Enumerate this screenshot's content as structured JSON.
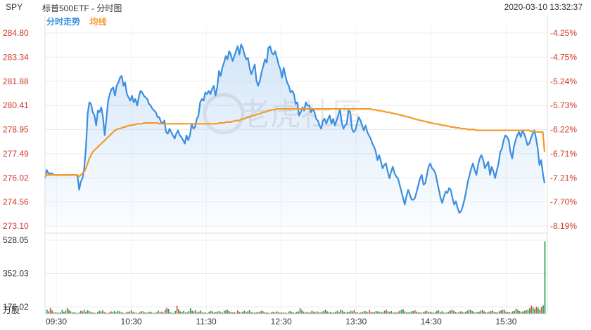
{
  "header": {
    "ticker": "SPY",
    "title": "标普500ETF - 分时图",
    "datetime": "2020-03-10 13:32:37",
    "legend": [
      {
        "label": "分时走势",
        "color": "#3b8ee0"
      },
      {
        "label": "均线",
        "color": "#f39a2b"
      }
    ]
  },
  "watermark": "老虎社區",
  "chart_data": [
    {
      "type": "line",
      "title": "",
      "x_ticks": [
        "09:30",
        "10:30",
        "11:30",
        "12:30",
        "13:30",
        "14:30",
        "15:30"
      ],
      "y_ticks": [
        "284.80",
        "283.34",
        "281.88",
        "280.41",
        "278.95",
        "277.49",
        "276.02",
        "274.56",
        "273.10"
      ],
      "y_ticks_right": [
        "-4.25%",
        "-4.75%",
        "-5.24%",
        "-5.73%",
        "-6.22%",
        "-6.71%",
        "-7.21%",
        "-7.70%",
        "-8.19%"
      ],
      "ylim": [
        273.1,
        284.8
      ],
      "grid": true,
      "series": [
        {
          "name": "分时走势",
          "color": "#3b8ee0",
          "fill": true,
          "values": [
            276.0,
            276.5,
            276.3,
            276.3,
            276.3,
            276.2,
            276.2,
            276.2,
            276.2,
            276.2,
            276.2,
            276.2,
            276.2,
            276.2,
            276.2,
            276.2,
            276.2,
            276.2,
            276.2,
            276.2,
            275.3,
            275.8,
            276.0,
            276.6,
            277.9,
            279.9,
            280.6,
            280.5,
            280.0,
            279.8,
            279.2,
            280.1,
            280.0,
            280.3,
            279.7,
            278.6,
            279.6,
            280.7,
            281.1,
            281.4,
            281.5,
            281.0,
            281.6,
            281.8,
            282.1,
            282.2,
            281.6,
            281.8,
            281.1,
            280.9,
            280.7,
            281.0,
            280.6,
            280.8,
            280.4,
            280.9,
            281.3,
            281.2,
            281.0,
            280.9,
            280.8,
            280.5,
            280.4,
            280.2,
            280.1,
            280.0,
            279.7,
            279.7,
            279.4,
            279.3,
            279.5,
            278.8,
            278.7,
            279.0,
            278.8,
            278.6,
            278.4,
            278.7,
            278.9,
            278.6,
            278.5,
            278.3,
            278.1,
            278.6,
            278.3,
            278.6,
            279.3,
            279.0,
            279.1,
            279.6,
            279.8,
            280.6,
            280.8,
            280.7,
            281.2,
            281.1,
            281.3,
            281.1,
            281.4,
            281.6,
            281.0,
            281.5,
            282.5,
            282.2,
            282.7,
            283.0,
            283.4,
            283.2,
            283.7,
            283.5,
            283.1,
            283.4,
            283.7,
            284.0,
            283.5,
            284.1,
            283.9,
            283.5,
            283.2,
            283.3,
            282.7,
            282.3,
            282.6,
            282.9,
            281.9,
            281.6,
            281.9,
            282.4,
            282.8,
            283.2,
            283.0,
            283.9,
            284.0,
            283.6,
            283.5,
            283.7,
            283.3,
            282.9,
            282.6,
            282.1,
            282.7,
            282.2,
            281.8,
            281.6,
            281.2,
            281.3,
            281.1,
            280.5,
            280.6,
            279.8,
            280.0,
            280.3,
            280.1,
            280.6,
            280.4,
            280.4,
            280.0,
            280.2,
            280.0,
            279.6,
            279.5,
            279.2,
            279.0,
            279.5,
            279.6,
            279.3,
            279.6,
            279.8,
            279.3,
            279.6,
            279.2,
            279.5,
            279.8,
            280.2,
            279.4,
            279.0,
            279.2,
            279.3,
            280.1,
            280.0,
            279.0,
            278.8,
            278.9,
            279.3,
            279.7,
            279.5,
            279.2,
            278.9,
            279.2,
            278.8,
            278.6,
            278.4,
            278.1,
            277.9,
            277.6,
            277.1,
            277.4,
            277.0,
            276.6,
            276.8,
            276.9,
            276.4,
            276.0,
            276.4,
            276.7,
            276.3,
            276.1,
            276.0,
            275.6,
            275.2,
            274.8,
            274.4,
            274.9,
            275.3,
            275.0,
            274.7,
            274.7,
            274.8,
            275.2,
            275.6,
            276.0,
            276.2,
            275.6,
            275.7,
            276.2,
            276.7,
            276.9,
            276.6,
            276.5,
            276.3,
            275.8,
            275.3,
            274.8,
            274.5,
            274.9,
            275.2,
            275.1,
            275.4,
            275.3,
            274.8,
            274.4,
            274.6,
            274.2,
            273.9,
            274.0,
            274.3,
            274.7,
            275.2,
            275.8,
            276.2,
            276.6,
            276.9,
            276.5,
            276.2,
            276.8,
            277.2,
            277.4,
            277.1,
            276.6,
            276.8,
            277.0,
            276.2,
            276.7,
            276.4,
            276.0,
            276.5,
            276.9,
            277.6,
            277.8,
            278.3,
            278.6,
            278.5,
            278.3,
            277.6,
            277.2,
            277.9,
            278.3,
            278.6,
            278.8,
            278.5,
            278.9,
            278.7,
            278.4,
            278.0,
            278.1,
            278.4,
            278.7,
            278.9,
            278.4,
            277.8,
            276.8,
            277.1,
            276.3,
            275.7
          ]
        },
        {
          "name": "均线",
          "color": "#f39a2b",
          "fill": false,
          "values": [
            276.2,
            276.2,
            276.2,
            276.2,
            276.2,
            276.2,
            276.2,
            276.2,
            276.2,
            276.2,
            276.2,
            276.2,
            276.2,
            276.2,
            276.2,
            276.2,
            276.2,
            276.2,
            276.2,
            276.2,
            276.1,
            276.2,
            276.3,
            276.4,
            276.6,
            276.9,
            277.2,
            277.4,
            277.6,
            277.7,
            277.8,
            277.9,
            278.0,
            278.1,
            278.2,
            278.3,
            278.4,
            278.5,
            278.6,
            278.7,
            278.8,
            278.9,
            278.95,
            279.0,
            279.0,
            279.05,
            279.1,
            279.1,
            279.15,
            279.2,
            279.2,
            279.2,
            279.25,
            279.25,
            279.3,
            279.3,
            279.3,
            279.3,
            279.35,
            279.35,
            279.35,
            279.35,
            279.35,
            279.35,
            279.35,
            279.35,
            279.35,
            279.3,
            279.3,
            279.3,
            279.3,
            279.3,
            279.3,
            279.3,
            279.3,
            279.3,
            279.3,
            279.3,
            279.3,
            279.3,
            279.3,
            279.3,
            279.3,
            279.3,
            279.3,
            279.3,
            279.3,
            279.3,
            279.3,
            279.3,
            279.3,
            279.3,
            279.3,
            279.3,
            279.3,
            279.3,
            279.3,
            279.3,
            279.3,
            279.3,
            279.3,
            279.3,
            279.35,
            279.35,
            279.35,
            279.35,
            279.4,
            279.4,
            279.4,
            279.4,
            279.45,
            279.45,
            279.5,
            279.5,
            279.5,
            279.55,
            279.6,
            279.6,
            279.65,
            279.7,
            279.7,
            279.75,
            279.8,
            279.8,
            279.85,
            279.9,
            279.9,
            279.95,
            280.0,
            280.0,
            280.05,
            280.1,
            280.1,
            280.15,
            280.15,
            280.15,
            280.2,
            280.2,
            280.2,
            280.2,
            280.2,
            280.2,
            280.2,
            280.2,
            280.2,
            280.2,
            280.2,
            280.2,
            280.2,
            280.2,
            280.2,
            280.2,
            280.2,
            280.2,
            280.2,
            280.2,
            280.2,
            280.2,
            280.2,
            280.2,
            280.2,
            280.2,
            280.2,
            280.2,
            280.2,
            280.2,
            280.2,
            280.2,
            280.2,
            280.2,
            280.2,
            280.2,
            280.2,
            280.2,
            280.2,
            280.2,
            280.2,
            280.2,
            280.2,
            280.2,
            280.2,
            280.2,
            280.2,
            280.2,
            280.2,
            280.2,
            280.2,
            280.2,
            280.2,
            280.2,
            280.2,
            280.2,
            280.15,
            280.15,
            280.15,
            280.1,
            280.1,
            280.1,
            280.05,
            280.05,
            280.0,
            280.0,
            280.0,
            279.95,
            279.95,
            279.9,
            279.9,
            279.85,
            279.85,
            279.8,
            279.8,
            279.75,
            279.75,
            279.7,
            279.7,
            279.65,
            279.6,
            279.6,
            279.55,
            279.55,
            279.5,
            279.5,
            279.45,
            279.45,
            279.4,
            279.4,
            279.35,
            279.35,
            279.3,
            279.3,
            279.3,
            279.25,
            279.25,
            279.2,
            279.2,
            279.2,
            279.15,
            279.15,
            279.1,
            279.1,
            279.1,
            279.05,
            279.05,
            279.05,
            279.0,
            279.0,
            279.0,
            279.0,
            278.95,
            278.95,
            278.95,
            278.95,
            278.95,
            278.9,
            278.9,
            278.9,
            278.9,
            278.9,
            278.9,
            278.9,
            278.9,
            278.9,
            278.9,
            278.9,
            278.9,
            278.9,
            278.9,
            278.9,
            278.9,
            278.9,
            278.9,
            278.9,
            278.9,
            278.9,
            278.9,
            278.9,
            278.9,
            278.9,
            278.9,
            278.9,
            278.9,
            278.9,
            278.9,
            278.9,
            278.9,
            278.85,
            278.85,
            278.85,
            278.8,
            278.8,
            278.8,
            278.8,
            278.8,
            277.6
          ]
        }
      ]
    },
    {
      "type": "bar",
      "title": "",
      "y_unit": "万股",
      "y_ticks": [
        "528.05",
        "352.03",
        "176.02"
      ],
      "ylim": [
        0,
        528.05
      ],
      "colors": {
        "up": "#e04c3c",
        "down": "#2a9d55"
      },
      "values": [
        30,
        18,
        42,
        25,
        12,
        10,
        8,
        8,
        12,
        30,
        15,
        22,
        40,
        28,
        18,
        10,
        12,
        8,
        6,
        10,
        22,
        18,
        30,
        14,
        26,
        20,
        12,
        10,
        8,
        6,
        14,
        22,
        18,
        26,
        12,
        8,
        6,
        10,
        18,
        14,
        20,
        10,
        22,
        18,
        12,
        8,
        6,
        10,
        14,
        18,
        26,
        12,
        10,
        8,
        6,
        12,
        20,
        18,
        10,
        8,
        14,
        16,
        12,
        6,
        8,
        10,
        22,
        12,
        16,
        8,
        30,
        42,
        36,
        12,
        8,
        6,
        20,
        58,
        34,
        18,
        14,
        22,
        10,
        12,
        20,
        40,
        22,
        18,
        26,
        10,
        16,
        24,
        12,
        8,
        10,
        6,
        14,
        22,
        18,
        10,
        12,
        16,
        20,
        12,
        8,
        22,
        26,
        30,
        18,
        14,
        10,
        12,
        8,
        24,
        14,
        10,
        16,
        22,
        12,
        18,
        26,
        10,
        12,
        8,
        10,
        14,
        16,
        22,
        18,
        12,
        10,
        8,
        6,
        12,
        16,
        10,
        18,
        14,
        8,
        12,
        10,
        8,
        6,
        12,
        20,
        14,
        10,
        8,
        14,
        18,
        40,
        28,
        16,
        10,
        14,
        8,
        12,
        22,
        16,
        10,
        18,
        12,
        8,
        16,
        22,
        30,
        18,
        12,
        14,
        8,
        10,
        16,
        22,
        12,
        30,
        24,
        14,
        10,
        16,
        12,
        22,
        18,
        28,
        10,
        12,
        8,
        10,
        14,
        22,
        18,
        12,
        28,
        16,
        10,
        14,
        20,
        18,
        12,
        16,
        10,
        22,
        30,
        18,
        14,
        20,
        10,
        12,
        8,
        16,
        22,
        28,
        34,
        18,
        12,
        10,
        14,
        18,
        20,
        26,
        16,
        12,
        10,
        8,
        14,
        18,
        22,
        12,
        16,
        10,
        8,
        14,
        20,
        26,
        12,
        18,
        10,
        8,
        12,
        16,
        24,
        30,
        22,
        14,
        10,
        12,
        18,
        16,
        10,
        14,
        22,
        28,
        30,
        20,
        12,
        10,
        14,
        16,
        24,
        28,
        18,
        12,
        10,
        16,
        20,
        24,
        14,
        12,
        10,
        18,
        24,
        30,
        28,
        16,
        14,
        12,
        10,
        18,
        22,
        36,
        28,
        20,
        14,
        18,
        22,
        26,
        30,
        40,
        60,
        48,
        36,
        52,
        44,
        30,
        50,
        62,
        520
      ],
      "directions": "duuddudduddudduddudduddudduddudduddudduddudduddudduddudduddudduddudduddudduddudduddudduddudduddudduddudduddudduddudduddudduddudduddudduddudduddudduddudduddudduddudduddudduddudduddudduddudduddudduddudduddudduddudduddudduddudduddudduddudduddudduddudduddudduddudduddudduddudduddudduddudduddudduddudduddudduu"
    }
  ]
}
